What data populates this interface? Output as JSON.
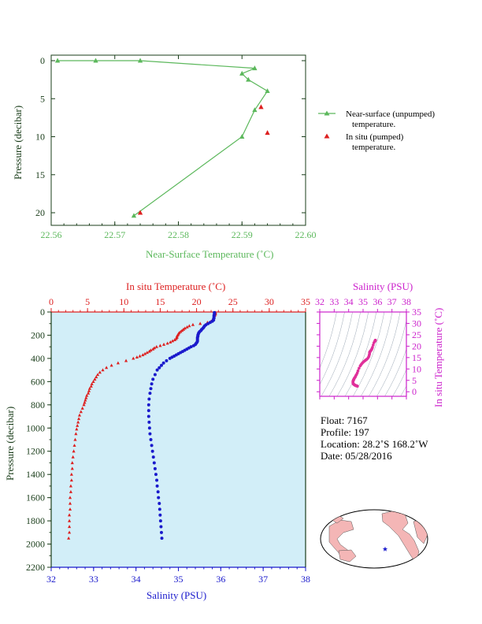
{
  "colors": {
    "green": "#5cb85c",
    "red": "#dd2020",
    "blue": "#1a1acc",
    "magenta": "#cc22cc",
    "panel_bg": "#d2eef8",
    "dark_axis": "#1a3d1a"
  },
  "info": {
    "float": "Float:  7167",
    "profile": "Profile:  197",
    "location": "Location:  28.2˚S  168.2˚W",
    "date": "Date:  05/28/2016"
  },
  "legend": {
    "line1a": "Near-surface (unpumped)",
    "line1b": "temperature.",
    "line2a": "In situ (pumped)",
    "line2b": "temperature."
  },
  "footer_text": "",
  "chart_data": [
    {
      "id": "near_surface",
      "type": "line",
      "title": "",
      "xlabel": "Near-Surface Temperature (˚C)",
      "ylabel": "Pressure (decibar)",
      "xlim": [
        22.56,
        22.6
      ],
      "ylim": [
        0,
        22
      ],
      "y_inverted": true,
      "xticks": [
        22.56,
        22.57,
        22.58,
        22.59,
        22.6
      ],
      "xtick_labels": [
        "22.56",
        "22.57",
        "22.58",
        "22.59",
        "22.60"
      ],
      "yticks": [
        0,
        5,
        10,
        15,
        20
      ],
      "ytick_labels": [
        "0",
        "5",
        "10",
        "15",
        "20"
      ],
      "series": [
        {
          "name": "Near-surface (unpumped) temperature.",
          "kind": "line-triangle",
          "x": [
            22.561,
            22.567,
            22.574,
            22.592,
            22.59,
            22.591,
            22.594,
            22.592,
            22.59,
            22.573
          ],
          "y": [
            0,
            0,
            0,
            1,
            1.7,
            2.5,
            4,
            6.5,
            10,
            20.4
          ]
        },
        {
          "name": "In situ (pumped) temperature.",
          "kind": "triangle",
          "x": [
            22.593,
            22.594,
            22.574
          ],
          "y": [
            6.1,
            9.5,
            20.0
          ]
        }
      ]
    },
    {
      "id": "profile",
      "type": "scatter",
      "title": "",
      "top_xlabel": "In situ Temperature (˚C)",
      "bottom_xlabel": "Salinity (PSU)",
      "ylabel": "Pressure (decibar)",
      "temp_xlim": [
        0,
        35
      ],
      "sal_xlim": [
        32,
        38
      ],
      "ylim": [
        0,
        2200
      ],
      "y_inverted": true,
      "temp_ticks": [
        0,
        5,
        10,
        15,
        20,
        25,
        30,
        35
      ],
      "temp_tick_labels": [
        "0",
        "5",
        "10",
        "15",
        "20",
        "25",
        "30",
        "35"
      ],
      "sal_ticks": [
        32,
        33,
        34,
        35,
        36,
        37,
        38
      ],
      "sal_tick_labels": [
        "32",
        "33",
        "34",
        "35",
        "36",
        "37",
        "38"
      ],
      "yticks": [
        0,
        200,
        400,
        600,
        800,
        1000,
        1200,
        1400,
        1600,
        1800,
        2000,
        2200
      ],
      "ytick_labels": [
        "0",
        "200",
        "400",
        "600",
        "800",
        "1000",
        "1200",
        "1400",
        "1600",
        "1800",
        "2000",
        "2200"
      ],
      "temperature": {
        "pressure": [
          5,
          10,
          20,
          30,
          40,
          50,
          60,
          70,
          80,
          90,
          100,
          110,
          120,
          130,
          140,
          150,
          160,
          170,
          180,
          190,
          200,
          210,
          220,
          230,
          240,
          250,
          260,
          270,
          280,
          290,
          300,
          310,
          320,
          330,
          340,
          350,
          360,
          370,
          380,
          390,
          400,
          420,
          440,
          460,
          480,
          500,
          520,
          540,
          560,
          580,
          600,
          620,
          640,
          660,
          680,
          700,
          720,
          740,
          760,
          780,
          800,
          830,
          860,
          890,
          920,
          950,
          980,
          1010,
          1050,
          1100,
          1150,
          1200,
          1250,
          1300,
          1350,
          1400,
          1450,
          1500,
          1550,
          1600,
          1650,
          1700,
          1750,
          1800,
          1850,
          1900,
          1950
        ],
        "values": [
          22.6,
          22.6,
          22.6,
          22.5,
          22.4,
          22.4,
          22.3,
          22.2,
          22.0,
          21.5,
          20.5,
          19.5,
          19.0,
          18.7,
          18.4,
          18.2,
          18.0,
          17.8,
          17.6,
          17.5,
          17.4,
          17.3,
          17.3,
          17.2,
          17.0,
          16.7,
          16.4,
          16.0,
          15.5,
          15.0,
          14.5,
          14.2,
          14.0,
          13.7,
          13.5,
          13.2,
          12.9,
          12.6,
          12.2,
          11.8,
          11.3,
          10.3,
          9.2,
          8.3,
          7.6,
          7.1,
          6.7,
          6.4,
          6.2,
          6.0,
          5.8,
          5.6,
          5.5,
          5.3,
          5.2,
          5.1,
          4.9,
          4.8,
          4.7,
          4.6,
          4.5,
          4.3,
          4.1,
          3.9,
          3.8,
          3.7,
          3.6,
          3.5,
          3.4,
          3.3,
          3.2,
          3.1,
          3.0,
          2.9,
          2.9,
          2.8,
          2.8,
          2.7,
          2.7,
          2.6,
          2.6,
          2.6,
          2.5,
          2.5,
          2.5,
          2.5,
          2.4
        ]
      },
      "salinity": {
        "pressure": [
          5,
          10,
          20,
          30,
          40,
          50,
          60,
          70,
          80,
          90,
          100,
          110,
          120,
          130,
          140,
          150,
          160,
          170,
          180,
          190,
          200,
          210,
          220,
          230,
          240,
          250,
          260,
          270,
          280,
          290,
          300,
          310,
          320,
          330,
          340,
          350,
          360,
          370,
          380,
          390,
          400,
          420,
          440,
          460,
          480,
          500,
          540,
          580,
          620,
          660,
          700,
          750,
          800,
          850,
          900,
          950,
          1000,
          1050,
          1100,
          1150,
          1200,
          1250,
          1300,
          1350,
          1400,
          1450,
          1500,
          1550,
          1600,
          1650,
          1700,
          1750,
          1800,
          1850,
          1900,
          1950
        ],
        "values": [
          35.85,
          35.85,
          35.85,
          35.84,
          35.84,
          35.84,
          35.83,
          35.83,
          35.8,
          35.75,
          35.7,
          35.65,
          35.62,
          35.6,
          35.58,
          35.55,
          35.53,
          35.5,
          35.48,
          35.47,
          35.46,
          35.46,
          35.45,
          35.45,
          35.45,
          35.45,
          35.44,
          35.42,
          35.4,
          35.36,
          35.3,
          35.25,
          35.2,
          35.15,
          35.1,
          35.05,
          35.0,
          34.95,
          34.9,
          34.85,
          34.8,
          34.72,
          34.65,
          34.6,
          34.55,
          34.5,
          34.45,
          34.4,
          34.37,
          34.35,
          34.33,
          34.31,
          34.3,
          34.3,
          34.3,
          34.31,
          34.32,
          34.33,
          34.35,
          34.37,
          34.39,
          34.41,
          34.43,
          34.45,
          34.47,
          34.49,
          34.5,
          34.52,
          34.53,
          34.55,
          34.56,
          34.57,
          34.58,
          34.59,
          34.6,
          34.61
        ]
      }
    },
    {
      "id": "ts_diagram",
      "type": "scatter",
      "title": "",
      "xlabel": "Salinity (PSU)",
      "ylabel": "In situ Temperature (˚C)",
      "xlim": [
        32,
        38
      ],
      "ylim": [
        -2,
        35
      ],
      "xticks": [
        32,
        33,
        34,
        35,
        36,
        37,
        38
      ],
      "xtick_labels": [
        "32",
        "33",
        "34",
        "35",
        "36",
        "37",
        "38"
      ],
      "yticks": [
        0,
        5,
        10,
        15,
        20,
        25,
        30,
        35
      ],
      "ytick_labels": [
        "0",
        "5",
        "10",
        "15",
        "20",
        "25",
        "30",
        "35"
      ]
    }
  ]
}
